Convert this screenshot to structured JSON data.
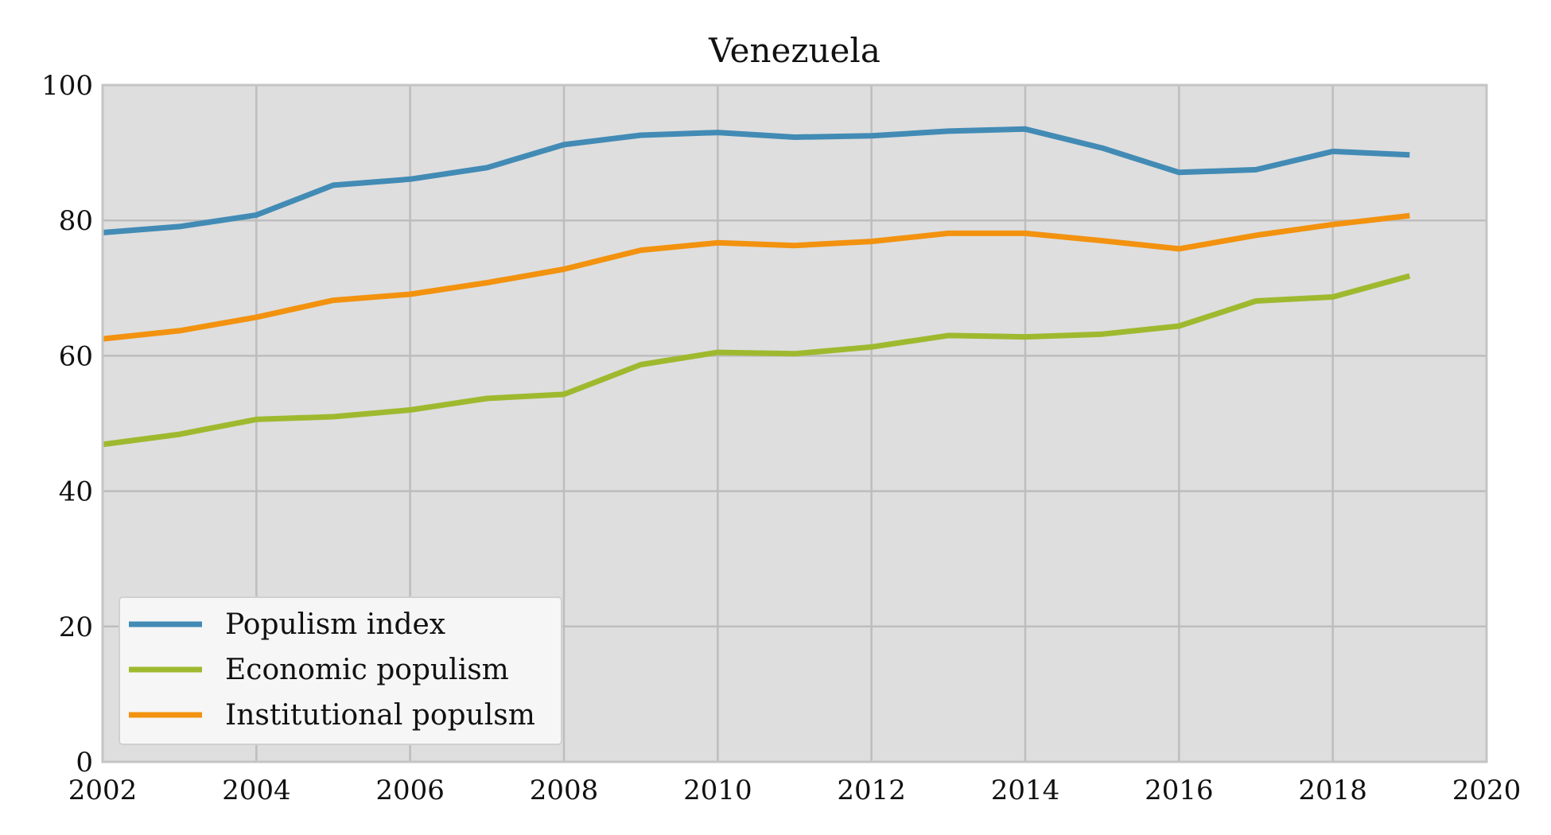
{
  "chart_data": {
    "type": "line",
    "title": "Venezuela",
    "xlabel": "",
    "ylabel": "",
    "xlim": [
      2002,
      2020
    ],
    "ylim": [
      0,
      100
    ],
    "xticks": [
      2002,
      2004,
      2006,
      2008,
      2010,
      2012,
      2014,
      2016,
      2018,
      2020
    ],
    "yticks": [
      0,
      20,
      40,
      60,
      80,
      100
    ],
    "grid": true,
    "legend_position": "lower-left",
    "background_color": "#dedede",
    "x": [
      2002,
      2003,
      2004,
      2005,
      2006,
      2007,
      2008,
      2009,
      2010,
      2011,
      2012,
      2013,
      2014,
      2015,
      2016,
      2017,
      2018,
      2019
    ],
    "series": [
      {
        "name": "Populism index",
        "color": "#428bb5",
        "values": [
          78.2,
          79.1,
          80.8,
          85.2,
          86.1,
          87.8,
          91.2,
          92.6,
          93.0,
          92.3,
          92.5,
          93.2,
          93.5,
          90.7,
          87.1,
          87.5,
          90.2,
          89.7
        ]
      },
      {
        "name": "Economic populism",
        "color": "#9fb92f",
        "values": [
          46.9,
          48.4,
          50.6,
          51.0,
          52.0,
          53.7,
          54.3,
          58.7,
          60.5,
          60.3,
          61.3,
          63.0,
          62.8,
          63.2,
          64.4,
          68.1,
          68.7,
          71.8
        ]
      },
      {
        "name": "Institutional populsm",
        "color": "#f2920f",
        "values": [
          62.5,
          63.7,
          65.7,
          68.2,
          69.1,
          70.8,
          72.8,
          75.6,
          76.7,
          76.3,
          76.9,
          78.1,
          78.1,
          77.0,
          75.8,
          77.8,
          79.4,
          80.7
        ]
      }
    ]
  }
}
